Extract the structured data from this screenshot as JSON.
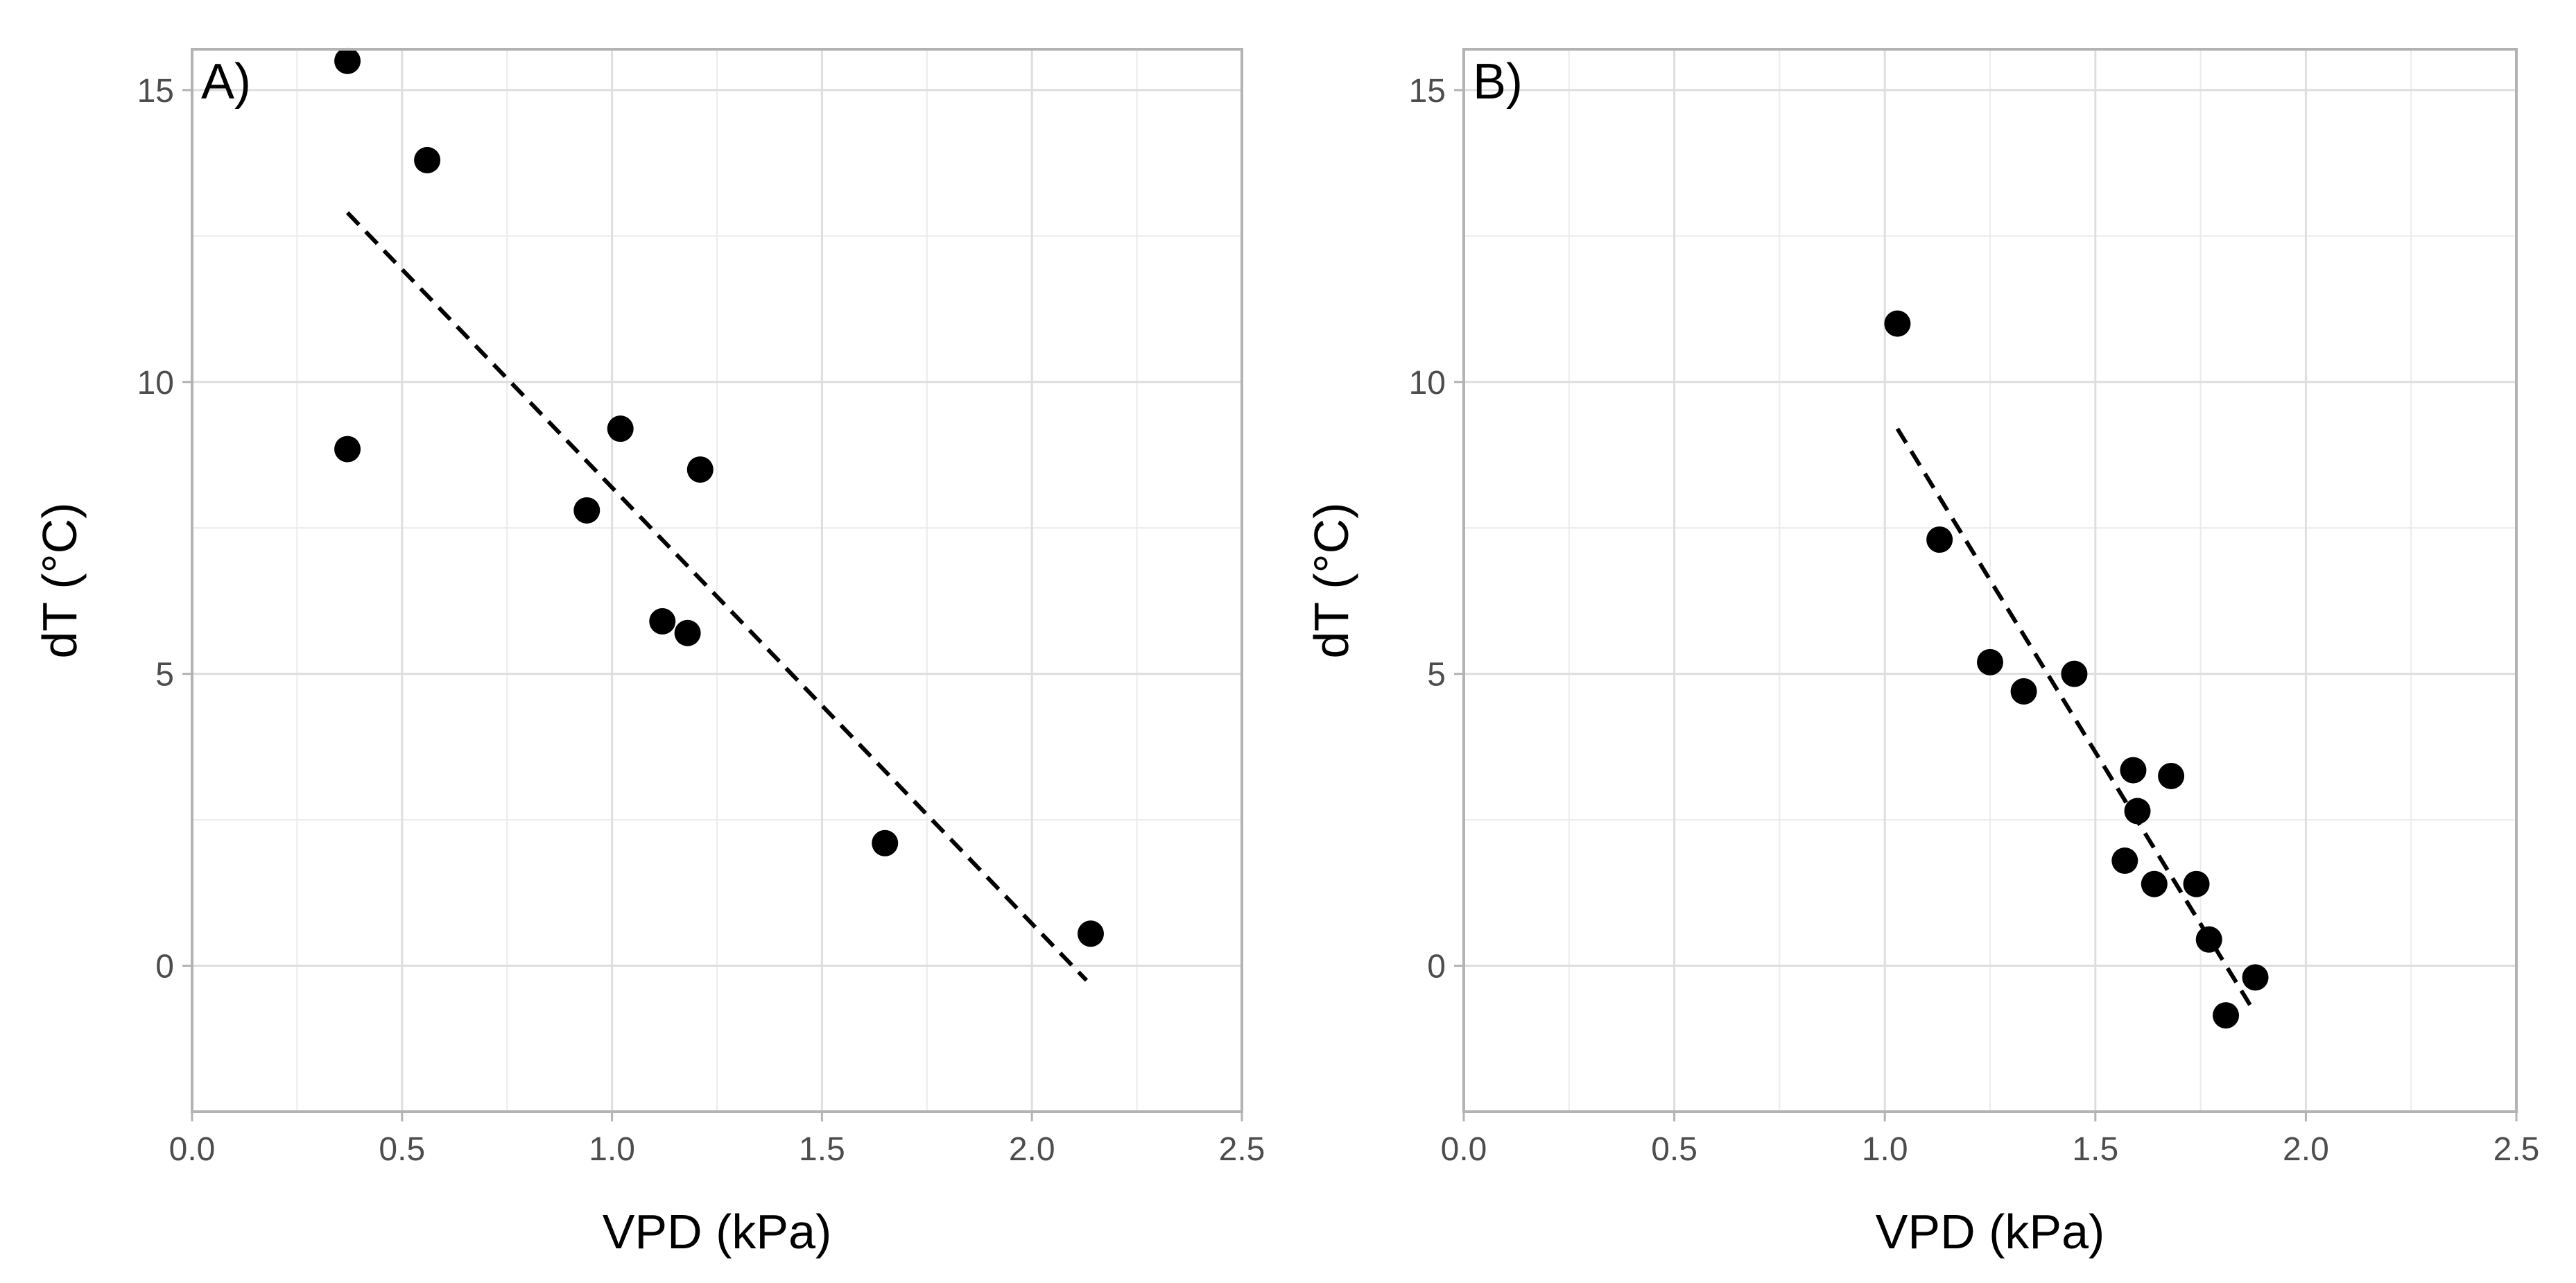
{
  "chart_data": [
    {
      "type": "scatter",
      "panel_label": "A)",
      "xlabel": "VPD (kPa)",
      "ylabel": "dT (°C)",
      "xlim": [
        0.0,
        2.5
      ],
      "ylim": [
        -2.5,
        15.7
      ],
      "xticks": [
        0.0,
        0.5,
        1.0,
        1.5,
        2.0,
        2.5
      ],
      "xtick_labels": [
        "0.0",
        "0.5",
        "1.0",
        "1.5",
        "2.0",
        "2.5"
      ],
      "yticks": [
        0,
        5,
        10,
        15
      ],
      "ytick_labels": [
        "0",
        "5",
        "10",
        "15"
      ],
      "grid": true,
      "points": [
        {
          "x": 0.37,
          "y": 15.5
        },
        {
          "x": 0.56,
          "y": 13.8
        },
        {
          "x": 0.37,
          "y": 8.85
        },
        {
          "x": 0.94,
          "y": 7.8
        },
        {
          "x": 1.02,
          "y": 9.2
        },
        {
          "x": 1.21,
          "y": 8.5
        },
        {
          "x": 1.12,
          "y": 5.9
        },
        {
          "x": 1.18,
          "y": 5.7
        },
        {
          "x": 1.65,
          "y": 2.1
        },
        {
          "x": 2.14,
          "y": 0.55
        }
      ],
      "fit_line": {
        "x": [
          0.37,
          2.13
        ],
        "y": [
          12.9,
          -0.25
        ],
        "style": "dashed"
      }
    },
    {
      "type": "scatter",
      "panel_label": "B)",
      "xlabel": "VPD (kPa)",
      "ylabel": "dT (°C)",
      "xlim": [
        0.0,
        2.5
      ],
      "ylim": [
        -2.5,
        15.7
      ],
      "xticks": [
        0.0,
        0.5,
        1.0,
        1.5,
        2.0,
        2.5
      ],
      "xtick_labels": [
        "0.0",
        "0.5",
        "1.0",
        "1.5",
        "2.0",
        "2.5"
      ],
      "yticks": [
        0,
        5,
        10,
        15
      ],
      "ytick_labels": [
        "0",
        "5",
        "10",
        "15"
      ],
      "grid": true,
      "points": [
        {
          "x": 1.03,
          "y": 11.0
        },
        {
          "x": 1.13,
          "y": 7.3
        },
        {
          "x": 1.25,
          "y": 5.2
        },
        {
          "x": 1.33,
          "y": 4.7
        },
        {
          "x": 1.45,
          "y": 5.0
        },
        {
          "x": 1.59,
          "y": 3.35
        },
        {
          "x": 1.6,
          "y": 2.65
        },
        {
          "x": 1.68,
          "y": 3.25
        },
        {
          "x": 1.57,
          "y": 1.8
        },
        {
          "x": 1.64,
          "y": 1.4
        },
        {
          "x": 1.74,
          "y": 1.4
        },
        {
          "x": 1.77,
          "y": 0.45
        },
        {
          "x": 1.81,
          "y": -0.85
        },
        {
          "x": 1.88,
          "y": -0.2
        }
      ],
      "fit_line": {
        "x": [
          1.03,
          1.87
        ],
        "y": [
          9.2,
          -0.7
        ],
        "style": "dashed"
      }
    }
  ]
}
